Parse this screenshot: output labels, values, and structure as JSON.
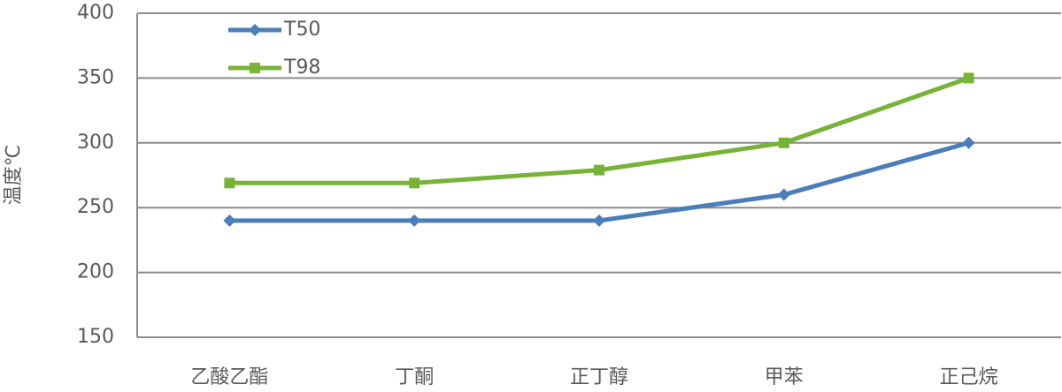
{
  "chart_data": {
    "type": "line",
    "y_label": "温度℃",
    "categories": [
      "乙酸乙酯",
      "丁酮",
      "正丁醇",
      "甲苯",
      "正己烷"
    ],
    "series": [
      {
        "name": "T50",
        "color": "#4a7ebb",
        "marker": "diamond",
        "values": [
          240,
          240,
          240,
          260,
          300
        ]
      },
      {
        "name": "T98",
        "color": "#77b337",
        "marker": "square",
        "values": [
          269,
          269,
          279,
          300,
          350
        ]
      }
    ],
    "ylim": [
      150,
      400
    ],
    "yticks": [
      150,
      200,
      250,
      300,
      350,
      400
    ],
    "grid": true,
    "legend": "top-left"
  }
}
